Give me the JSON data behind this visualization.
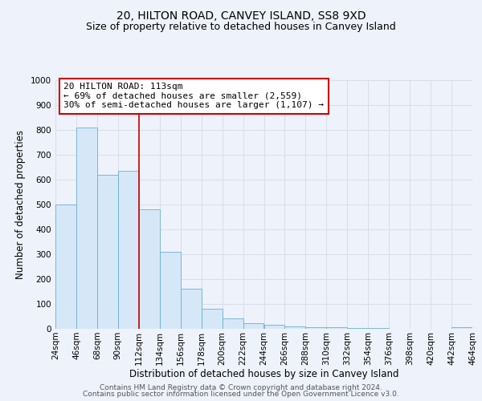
{
  "title": "20, HILTON ROAD, CANVEY ISLAND, SS8 9XD",
  "subtitle": "Size of property relative to detached houses in Canvey Island",
  "xlabel": "Distribution of detached houses by size in Canvey Island",
  "ylabel": "Number of detached properties",
  "bar_left_edges": [
    24,
    46,
    68,
    90,
    112,
    134,
    156,
    178,
    200,
    222,
    244,
    266,
    288,
    310,
    332,
    354,
    376,
    398,
    420,
    442
  ],
  "bar_heights": [
    500,
    810,
    620,
    635,
    480,
    310,
    160,
    80,
    43,
    22,
    15,
    10,
    7,
    5,
    3,
    2,
    1,
    1,
    0,
    7
  ],
  "bin_width": 22,
  "bar_color": "#d6e8f7",
  "bar_edge_color": "#6aaed6",
  "property_line_x": 112,
  "property_line_color": "#cc0000",
  "annotation_text": "20 HILTON ROAD: 113sqm\n← 69% of detached houses are smaller (2,559)\n30% of semi-detached houses are larger (1,107) →",
  "annotation_box_facecolor": "#ffffff",
  "annotation_box_edgecolor": "#cc0000",
  "ylim": [
    0,
    1000
  ],
  "yticks": [
    0,
    100,
    200,
    300,
    400,
    500,
    600,
    700,
    800,
    900,
    1000
  ],
  "xtick_labels": [
    "24sqm",
    "46sqm",
    "68sqm",
    "90sqm",
    "112sqm",
    "134sqm",
    "156sqm",
    "178sqm",
    "200sqm",
    "222sqm",
    "244sqm",
    "266sqm",
    "288sqm",
    "310sqm",
    "332sqm",
    "354sqm",
    "376sqm",
    "398sqm",
    "420sqm",
    "442sqm",
    "464sqm"
  ],
  "footer_line1": "Contains HM Land Registry data © Crown copyright and database right 2024.",
  "footer_line2": "Contains public sector information licensed under the Open Government Licence v3.0.",
  "bg_color": "#eef2fa",
  "grid_color": "#d8dde8",
  "title_fontsize": 10,
  "subtitle_fontsize": 9,
  "axis_label_fontsize": 8.5,
  "tick_fontsize": 7.5,
  "annotation_fontsize": 8,
  "footer_fontsize": 6.5
}
